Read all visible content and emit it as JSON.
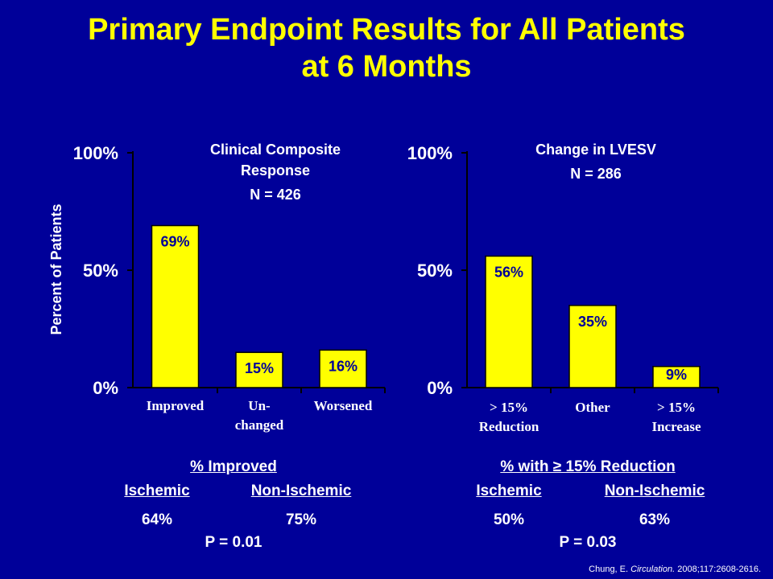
{
  "title": {
    "line1": "Primary Endpoint Results for All Patients",
    "line2": "at 6 Months"
  },
  "colors": {
    "background": "#000099",
    "title": "#ffff00",
    "bar": "#ffff00",
    "value_label": "#000099",
    "text": "#ffffff"
  },
  "chart_data": [
    {
      "type": "bar",
      "title_lines": [
        "Clinical Composite",
        "Response",
        "N = 426"
      ],
      "ylabel": "Percent of Patients",
      "yticks": [
        "100%",
        "50%",
        "0%"
      ],
      "ylim": [
        0,
        100
      ],
      "categories": [
        {
          "lines": [
            "Improved"
          ]
        },
        {
          "lines": [
            "Un-",
            "changed"
          ]
        },
        {
          "lines": [
            "Worsened"
          ]
        }
      ],
      "values": [
        69,
        15,
        16
      ],
      "value_labels": [
        "69%",
        "15%",
        "16%"
      ]
    },
    {
      "type": "bar",
      "title_lines": [
        "Change in LVESV",
        "N = 286"
      ],
      "yticks": [
        "100%",
        "50%",
        "0%"
      ],
      "ylim": [
        0,
        100
      ],
      "categories": [
        {
          "lines": [
            "> 15%",
            "Reduction"
          ]
        },
        {
          "lines": [
            "Other"
          ]
        },
        {
          "lines": [
            "> 15%",
            "Increase"
          ]
        }
      ],
      "values": [
        56,
        35,
        9
      ],
      "value_labels": [
        "56%",
        "35%",
        "9%"
      ]
    }
  ],
  "summary_left": {
    "heading": "% Improved",
    "col1_label": "Ischemic",
    "col2_label": "Non-Ischemic",
    "col1_value": "64%",
    "col2_value": "75%",
    "p_value": "P = 0.01"
  },
  "summary_right": {
    "heading": "% with ≥ 15% Reduction",
    "col1_label": "Ischemic",
    "col2_label": "Non-Ischemic",
    "col1_value": "50%",
    "col2_value": "63%",
    "p_value": "P = 0.03"
  },
  "citation": {
    "author": "Chung, E.",
    "journal": "Circulation.",
    "ref": "2008;117:2608-2616."
  }
}
